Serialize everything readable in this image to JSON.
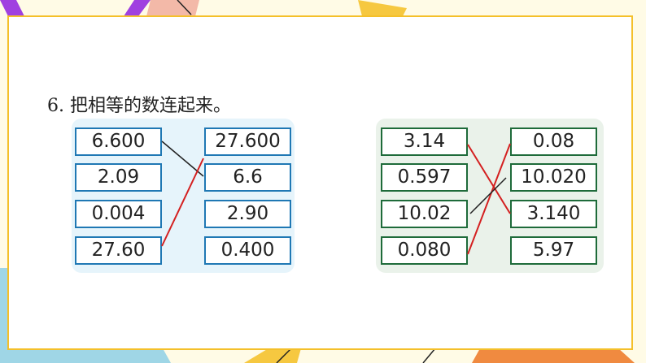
{
  "title": "6. 把相等的数连起来。",
  "colors": {
    "blue_panel": "#e6f4fb",
    "blue_border": "#1f78b4",
    "green_panel": "#eaf2ea",
    "green_border": "#1e6b3a",
    "line_red": "#d42020",
    "line_black": "#222222",
    "frame": "#f4c02a"
  },
  "left_group": {
    "left": [
      "6.600",
      "2.09",
      "0.004",
      "27.60"
    ],
    "right": [
      "27.600",
      "6.6",
      "2.90",
      "0.400"
    ]
  },
  "right_group": {
    "left": [
      "3.14",
      "0.597",
      "10.02",
      "0.080"
    ],
    "right": [
      "0.08",
      "10.020",
      "3.140",
      "5.97"
    ]
  }
}
